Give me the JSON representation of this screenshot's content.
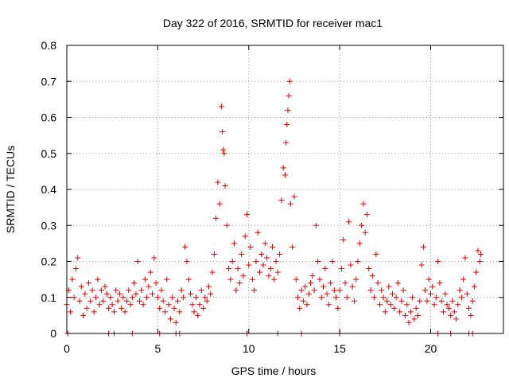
{
  "chart_data": {
    "type": "scatter",
    "title": "Day 322 of 2016, SRMTID for receiver mac1",
    "xlabel": "GPS time / hours",
    "ylabel": "SRMTID / TECUs",
    "xlim": [
      0,
      24
    ],
    "ylim": [
      0,
      0.8
    ],
    "x_ticks": [
      "0",
      "5",
      "10",
      "15",
      "20"
    ],
    "x_tick_values": [
      0,
      5,
      10,
      15,
      20
    ],
    "y_ticks": [
      "0",
      "0.1",
      "0.2",
      "0.3",
      "0.4",
      "0.5",
      "0.6",
      "0.7",
      "0.8"
    ],
    "y_tick_values": [
      0,
      0.1,
      0.2,
      0.3,
      0.4,
      0.5,
      0.6,
      0.7,
      0.8
    ],
    "grid": true,
    "marker": "+",
    "color": "#e00000",
    "series": [
      {
        "name": "SRMTID",
        "points": [
          [
            0.0,
            0.08
          ],
          [
            0.1,
            0.12
          ],
          [
            0.2,
            0.06
          ],
          [
            0.3,
            0.15
          ],
          [
            0.4,
            0.1
          ],
          [
            0.5,
            0.18
          ],
          [
            0.6,
            0.21
          ],
          [
            0.7,
            0.09
          ],
          [
            0.8,
            0.13
          ],
          [
            0.9,
            0.05
          ],
          [
            1.0,
            0.11
          ],
          [
            1.1,
            0.07
          ],
          [
            1.2,
            0.14
          ],
          [
            1.3,
            0.09
          ],
          [
            1.4,
            0.12
          ],
          [
            1.5,
            0.06
          ],
          [
            1.6,
            0.1
          ],
          [
            1.7,
            0.15
          ],
          [
            1.8,
            0.08
          ],
          [
            1.9,
            0.12
          ],
          [
            2.0,
            0.09
          ],
          [
            2.1,
            0.13
          ],
          [
            2.2,
            0.11
          ],
          [
            2.3,
            0.07
          ],
          [
            2.4,
            0.1
          ],
          [
            2.5,
            0.08
          ],
          [
            2.6,
            0.06
          ],
          [
            2.7,
            0.12
          ],
          [
            2.8,
            0.09
          ],
          [
            2.9,
            0.11
          ],
          [
            3.0,
            0.07
          ],
          [
            3.1,
            0.1
          ],
          [
            3.2,
            0.06
          ],
          [
            3.3,
            0.09
          ],
          [
            3.4,
            0.12
          ],
          [
            3.5,
            0.08
          ],
          [
            3.6,
            0.1
          ],
          [
            3.7,
            0.14
          ],
          [
            3.8,
            0.11
          ],
          [
            3.9,
            0.2
          ],
          [
            4.0,
            0.09
          ],
          [
            4.1,
            0.12
          ],
          [
            4.2,
            0.08
          ],
          [
            4.3,
            0.15
          ],
          [
            4.4,
            0.1
          ],
          [
            4.5,
            0.13
          ],
          [
            4.6,
            0.17
          ],
          [
            4.7,
            0.11
          ],
          [
            4.8,
            0.21
          ],
          [
            4.9,
            0.14
          ],
          [
            5.0,
            0.1
          ],
          [
            5.1,
            0.07
          ],
          [
            5.2,
            0.12
          ],
          [
            5.3,
            0.09
          ],
          [
            5.4,
            0.06
          ],
          [
            5.5,
            0.15
          ],
          [
            5.6,
            0.08
          ],
          [
            5.7,
            0.04
          ],
          [
            5.8,
            0.1
          ],
          [
            5.9,
            0.07
          ],
          [
            6.0,
            0.03
          ],
          [
            6.1,
            0.09
          ],
          [
            6.2,
            0.06
          ],
          [
            6.3,
            0.12
          ],
          [
            6.4,
            0.1
          ],
          [
            6.5,
            0.24
          ],
          [
            6.6,
            0.2
          ],
          [
            6.7,
            0.15
          ],
          [
            6.8,
            0.11
          ],
          [
            6.9,
            0.08
          ],
          [
            7.0,
            0.06
          ],
          [
            7.1,
            0.1
          ],
          [
            7.2,
            0.05
          ],
          [
            7.3,
            0.08
          ],
          [
            7.4,
            0.12
          ],
          [
            7.5,
            0.07
          ],
          [
            7.6,
            0.1
          ],
          [
            7.7,
            0.09
          ],
          [
            7.8,
            0.13
          ],
          [
            7.9,
            0.11
          ],
          [
            8.0,
            0.17
          ],
          [
            8.1,
            0.22
          ],
          [
            8.2,
            0.32
          ],
          [
            8.3,
            0.42
          ],
          [
            8.4,
            0.36
          ],
          [
            8.5,
            0.63
          ],
          [
            8.55,
            0.56
          ],
          [
            8.6,
            0.51
          ],
          [
            8.65,
            0.5
          ],
          [
            8.7,
            0.41
          ],
          [
            8.8,
            0.3
          ],
          [
            8.9,
            0.18
          ],
          [
            9.0,
            0.15
          ],
          [
            9.1,
            0.2
          ],
          [
            9.2,
            0.25
          ],
          [
            9.3,
            0.12
          ],
          [
            9.4,
            0.18
          ],
          [
            9.5,
            0.14
          ],
          [
            9.6,
            0.22
          ],
          [
            9.7,
            0.16
          ],
          [
            9.8,
            0.27
          ],
          [
            9.9,
            0.33
          ],
          [
            10.0,
            0.19
          ],
          [
            10.1,
            0.24
          ],
          [
            10.2,
            0.15
          ],
          [
            10.3,
            0.12
          ],
          [
            10.4,
            0.2
          ],
          [
            10.5,
            0.28
          ],
          [
            10.6,
            0.17
          ],
          [
            10.7,
            0.22
          ],
          [
            10.8,
            0.19
          ],
          [
            10.9,
            0.25
          ],
          [
            11.0,
            0.21
          ],
          [
            11.1,
            0.16
          ],
          [
            11.2,
            0.18
          ],
          [
            11.3,
            0.24
          ],
          [
            11.4,
            0.15
          ],
          [
            11.5,
            0.2
          ],
          [
            11.6,
            0.17
          ],
          [
            11.7,
            0.22
          ],
          [
            11.8,
            0.37
          ],
          [
            11.9,
            0.46
          ],
          [
            12.0,
            0.44
          ],
          [
            12.05,
            0.53
          ],
          [
            12.1,
            0.58
          ],
          [
            12.15,
            0.62
          ],
          [
            12.2,
            0.66
          ],
          [
            12.25,
            0.7
          ],
          [
            12.3,
            0.36
          ],
          [
            12.4,
            0.24
          ],
          [
            12.5,
            0.38
          ],
          [
            12.6,
            0.15
          ],
          [
            12.7,
            0.1
          ],
          [
            12.8,
            0.07
          ],
          [
            12.9,
            0.12
          ],
          [
            13.0,
            0.09
          ],
          [
            13.1,
            0.13
          ],
          [
            13.2,
            0.08
          ],
          [
            13.3,
            0.11
          ],
          [
            13.4,
            0.14
          ],
          [
            13.5,
            0.16
          ],
          [
            13.6,
            0.12
          ],
          [
            13.7,
            0.3
          ],
          [
            13.8,
            0.2
          ],
          [
            13.9,
            0.15
          ],
          [
            14.0,
            0.1
          ],
          [
            14.1,
            0.13
          ],
          [
            14.2,
            0.18
          ],
          [
            14.3,
            0.11
          ],
          [
            14.4,
            0.08
          ],
          [
            14.5,
            0.14
          ],
          [
            14.6,
            0.2
          ],
          [
            14.7,
            0.12
          ],
          [
            14.8,
            0.1
          ],
          [
            14.9,
            0.07
          ],
          [
            15.0,
            0.12
          ],
          [
            15.1,
            0.18
          ],
          [
            15.2,
            0.26
          ],
          [
            15.3,
            0.14
          ],
          [
            15.4,
            0.1
          ],
          [
            15.5,
            0.31
          ],
          [
            15.6,
            0.19
          ],
          [
            15.7,
            0.13
          ],
          [
            15.8,
            0.09
          ],
          [
            15.9,
            0.15
          ],
          [
            16.0,
            0.2
          ],
          [
            16.1,
            0.25
          ],
          [
            16.2,
            0.3
          ],
          [
            16.3,
            0.36
          ],
          [
            16.4,
            0.28
          ],
          [
            16.5,
            0.33
          ],
          [
            16.6,
            0.18
          ],
          [
            16.7,
            0.12
          ],
          [
            16.8,
            0.16
          ],
          [
            16.9,
            0.1
          ],
          [
            17.0,
            0.22
          ],
          [
            17.1,
            0.14
          ],
          [
            17.2,
            0.08
          ],
          [
            17.3,
            0.12
          ],
          [
            17.4,
            0.1
          ],
          [
            17.5,
            0.06
          ],
          [
            17.6,
            0.09
          ],
          [
            17.7,
            0.13
          ],
          [
            17.8,
            0.08
          ],
          [
            17.9,
            0.11
          ],
          [
            18.0,
            0.07
          ],
          [
            18.1,
            0.1
          ],
          [
            18.2,
            0.14
          ],
          [
            18.3,
            0.06
          ],
          [
            18.4,
            0.09
          ],
          [
            18.5,
            0.12
          ],
          [
            18.6,
            0.05
          ],
          [
            18.7,
            0.08
          ],
          [
            18.8,
            0.03
          ],
          [
            18.9,
            0.06
          ],
          [
            19.0,
            0.1
          ],
          [
            19.1,
            0.04
          ],
          [
            19.2,
            0.07
          ],
          [
            19.3,
            0.05
          ],
          [
            19.4,
            0.09
          ],
          [
            19.5,
            0.19
          ],
          [
            19.6,
            0.24
          ],
          [
            19.7,
            0.12
          ],
          [
            19.8,
            0.09
          ],
          [
            19.9,
            0.15
          ],
          [
            20.0,
            0.11
          ],
          [
            20.1,
            0.13
          ],
          [
            20.2,
            0.08
          ],
          [
            20.3,
            0.1
          ],
          [
            20.4,
            0.2
          ],
          [
            20.5,
            0.14
          ],
          [
            20.6,
            0.09
          ],
          [
            20.7,
            0.06
          ],
          [
            20.8,
            0.11
          ],
          [
            20.9,
            0.08
          ],
          [
            21.0,
            0.07
          ],
          [
            21.1,
            0.05
          ],
          [
            21.2,
            0.09
          ],
          [
            21.3,
            0.06
          ],
          [
            21.4,
            0.04
          ],
          [
            21.5,
            0.08
          ],
          [
            21.6,
            0.12
          ],
          [
            21.7,
            0.1
          ],
          [
            21.8,
            0.15
          ],
          [
            21.9,
            0.21
          ],
          [
            22.0,
            0.11
          ],
          [
            22.1,
            0.07
          ],
          [
            22.2,
            0.05
          ],
          [
            22.3,
            0.09
          ],
          [
            22.4,
            0.13
          ],
          [
            22.5,
            0.17
          ],
          [
            22.6,
            0.23
          ],
          [
            22.7,
            0.2
          ],
          [
            22.75,
            0.22
          ],
          [
            0.05,
            0.0
          ],
          [
            2.3,
            0.0
          ],
          [
            2.6,
            0.0
          ],
          [
            3.6,
            0.0
          ],
          [
            5.1,
            0.0
          ],
          [
            6.0,
            0.0
          ],
          [
            6.2,
            0.0
          ],
          [
            9.9,
            0.0
          ],
          [
            11.6,
            0.0
          ],
          [
            12.9,
            0.0
          ],
          [
            15.0,
            0.0
          ],
          [
            20.4,
            0.0
          ],
          [
            21.1,
            0.0
          ],
          [
            22.1,
            0.0
          ],
          [
            22.3,
            0.0
          ]
        ]
      }
    ]
  }
}
